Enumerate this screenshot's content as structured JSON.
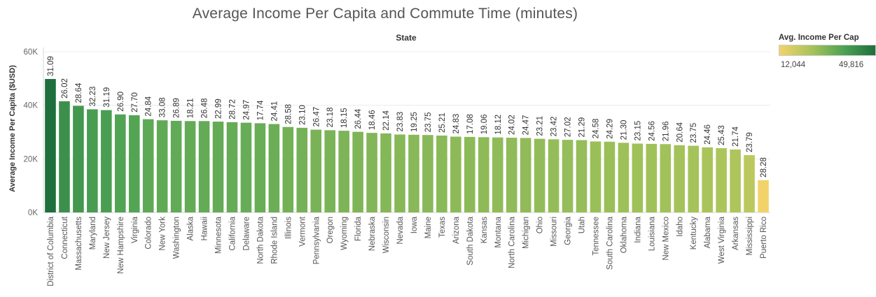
{
  "chart_data": {
    "type": "bar",
    "title": "Average Income Per Capita and Commute Time (minutes)",
    "column_header": "State",
    "ylabel": "Average Income Per Capita ($USD)",
    "ylim": [
      0,
      60000
    ],
    "yticks": [
      {
        "value": 0,
        "label": "0K"
      },
      {
        "value": 20000,
        "label": "20K"
      },
      {
        "value": 40000,
        "label": "40K"
      },
      {
        "value": 60000,
        "label": "60K"
      }
    ],
    "grid": true,
    "legend": {
      "title": "Avg. Income Per Cap",
      "min_label": "12,044",
      "max_label": "49,816",
      "min": 12044,
      "max": 49816,
      "placement": "top-right",
      "color_low": "#f2d36a",
      "color_high": "#1e6e3e"
    },
    "categories": [
      "District of Columbia",
      "Connecticut",
      "Massachusetts",
      "Maryland",
      "New Jersey",
      "New Hampshire",
      "Virginia",
      "Colorado",
      "New York",
      "Washington",
      "Alaska",
      "Hawaii",
      "Minnesota",
      "California",
      "Delaware",
      "North Dakota",
      "Rhode Island",
      "Illinois",
      "Vermont",
      "Pennsylvania",
      "Oregon",
      "Wyoming",
      "Florida",
      "Nebraska",
      "Wisconsin",
      "Nevada",
      "Iowa",
      "Maine",
      "Texas",
      "Arizona",
      "South Dakota",
      "Kansas",
      "Montana",
      "North Carolina",
      "Michigan",
      "Ohio",
      "Missouri",
      "Georgia",
      "Utah",
      "Tennessee",
      "South Carolina",
      "Oklahoma",
      "Indiana",
      "Louisiana",
      "New Mexico",
      "Idaho",
      "Kentucky",
      "Alabama",
      "West Virginia",
      "Arkansas",
      "Mississippi",
      "Puerto Rico"
    ],
    "values": [
      49816,
      41500,
      39800,
      38500,
      38200,
      36600,
      36300,
      34800,
      34400,
      34200,
      34100,
      34100,
      33900,
      33700,
      33500,
      33300,
      33000,
      31900,
      31600,
      30900,
      30700,
      30500,
      30100,
      29700,
      29500,
      29100,
      29000,
      28900,
      28700,
      28300,
      28200,
      28100,
      28000,
      27900,
      27800,
      27500,
      27300,
      27100,
      27000,
      26500,
      26400,
      26000,
      25700,
      25600,
      25500,
      25100,
      24900,
      24300,
      24000,
      23500,
      21400,
      12044
    ],
    "bar_labels": [
      "31.09",
      "26.02",
      "28.64",
      "32.23",
      "31.19",
      "26.90",
      "27.70",
      "24.84",
      "33.08",
      "26.89",
      "18.21",
      "26.48",
      "22.99",
      "28.72",
      "24.97",
      "17.74",
      "24.41",
      "28.58",
      "23.10",
      "26.47",
      "23.18",
      "18.15",
      "26.44",
      "18.46",
      "22.14",
      "23.83",
      "19.25",
      "23.75",
      "25.21",
      "24.83",
      "17.08",
      "19.06",
      "18.12",
      "24.02",
      "24.47",
      "23.21",
      "23.42",
      "27.02",
      "21.29",
      "24.58",
      "24.29",
      "21.30",
      "23.15",
      "24.56",
      "21.96",
      "20.64",
      "23.75",
      "24.46",
      "25.43",
      "21.74",
      "23.79",
      "28.28"
    ]
  }
}
